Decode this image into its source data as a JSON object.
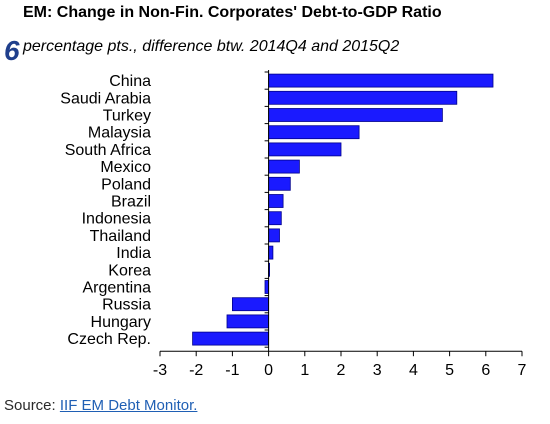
{
  "header": {
    "figure_number": "6"
  },
  "source": {
    "prefix": "Source:",
    "link_text": "IIF EM Debt Monitor."
  },
  "colors": {
    "bar_fill": "#1a1aff",
    "bar_stroke": "#00008b",
    "axis": "#000000",
    "figure_number": "#1f3f8c",
    "link": "#1f5fb4"
  },
  "chart_data": {
    "type": "bar",
    "orientation": "horizontal",
    "title": "EM: Change in Non-Fin. Corporates' Debt-to-GDP Ratio",
    "subtitle": "percentage pts., difference btw. 2014Q4 and 2015Q2",
    "categories": [
      "China",
      "Saudi Arabia",
      "Turkey",
      "Malaysia",
      "South Africa",
      "Mexico",
      "Poland",
      "Brazil",
      "Indonesia",
      "Thailand",
      "India",
      "Korea",
      "Argentina",
      "Russia",
      "Hungary",
      "Czech Rep."
    ],
    "values": [
      6.2,
      5.2,
      4.8,
      2.5,
      2.0,
      0.85,
      0.6,
      0.4,
      0.35,
      0.3,
      0.12,
      0.02,
      -0.1,
      -1.0,
      -1.15,
      -2.1
    ],
    "xlim": [
      -3,
      7
    ],
    "xticks": [
      "-3",
      "-2",
      "-1",
      "0",
      "1",
      "2",
      "3",
      "4",
      "5",
      "6",
      "7"
    ],
    "xlabel": "",
    "ylabel": "",
    "grid": false,
    "legend": "none"
  }
}
